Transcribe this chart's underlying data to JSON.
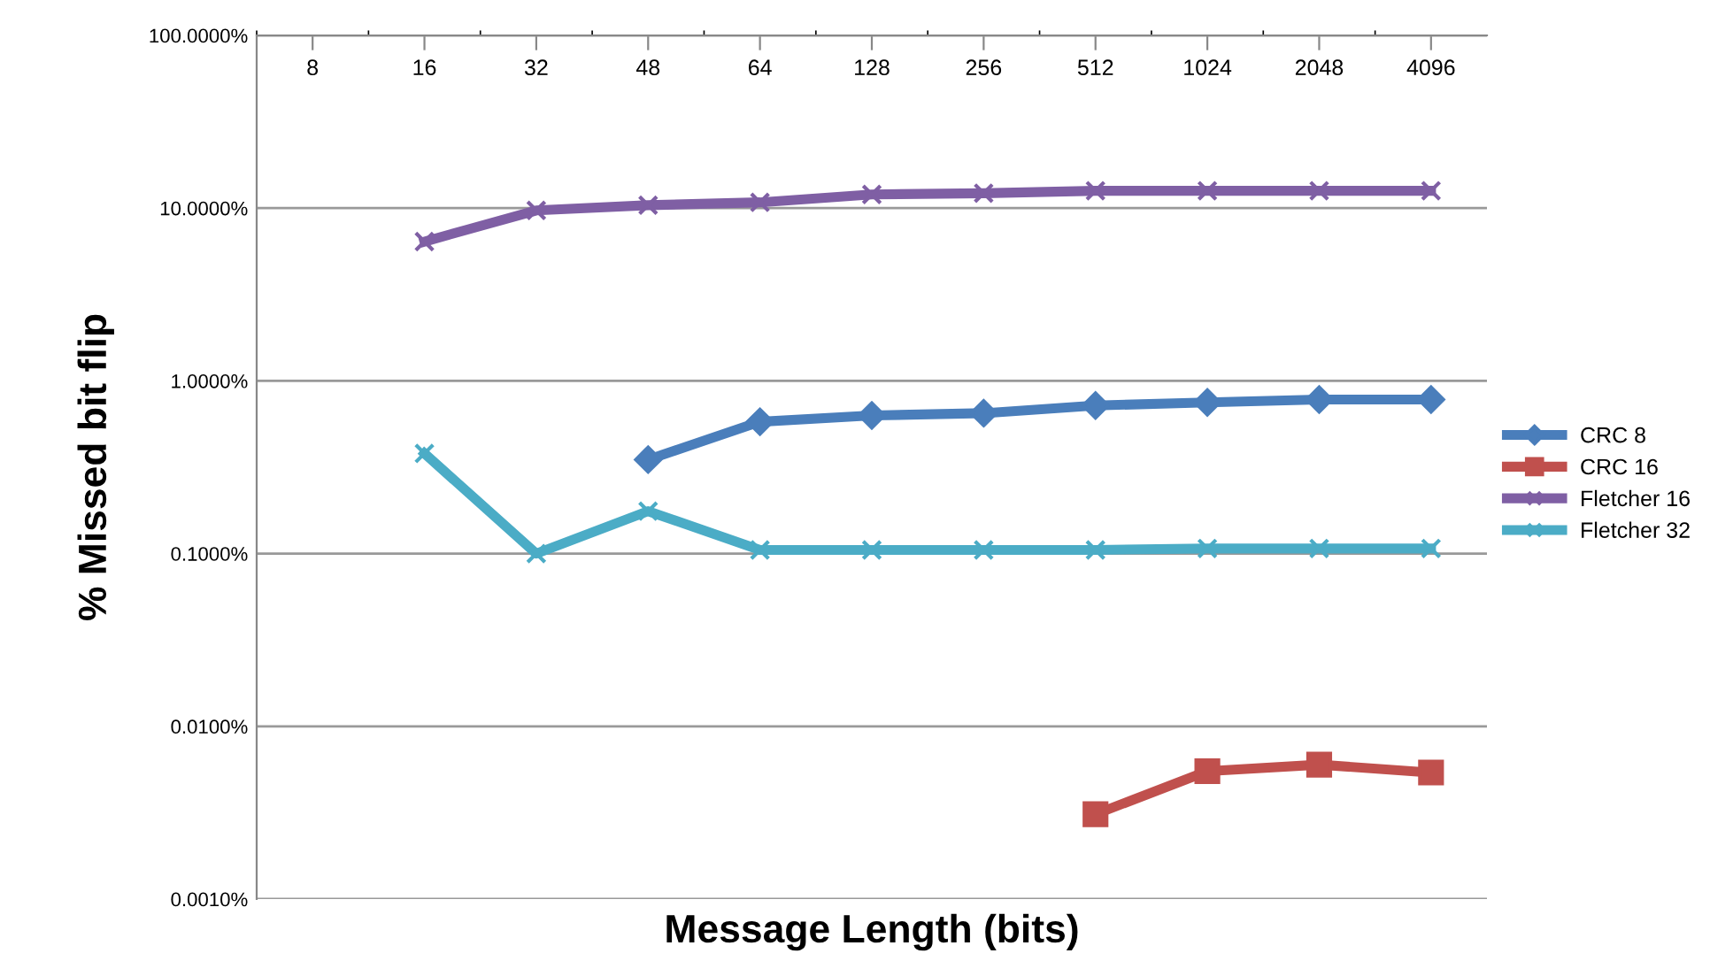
{
  "chart_data": {
    "type": "line",
    "xlabel": "Message Length (bits)",
    "ylabel": "% Missed bit flip",
    "categories": [
      "8",
      "16",
      "32",
      "48",
      "64",
      "128",
      "256",
      "512",
      "1024",
      "2048",
      "4096"
    ],
    "series": [
      {
        "name": "CRC 8",
        "color": "#4a7ebb",
        "marker": "diamond",
        "values": [
          null,
          null,
          null,
          0.35,
          0.58,
          0.63,
          0.65,
          0.72,
          0.75,
          0.78,
          0.78
        ]
      },
      {
        "name": "CRC 16",
        "color": "#c0504d",
        "marker": "square",
        "values": [
          null,
          null,
          null,
          null,
          null,
          null,
          null,
          0.0031,
          0.0055,
          0.006,
          0.0054
        ]
      },
      {
        "name": "Fletcher 16",
        "color": "#7f5fa4",
        "marker": "cross",
        "values": [
          null,
          6.4,
          9.7,
          10.4,
          10.8,
          12.0,
          12.2,
          12.6,
          12.6,
          12.6,
          12.6
        ]
      },
      {
        "name": "Fletcher 32",
        "color": "#4bacc6",
        "marker": "cross",
        "values": [
          null,
          0.38,
          0.1,
          0.176,
          0.105,
          0.105,
          0.105,
          0.105,
          0.107,
          0.107,
          0.107
        ]
      }
    ],
    "log": "y",
    "ylim": [
      0.001,
      100
    ],
    "yticks": [
      {
        "value": 0.001,
        "label": "0.0010%"
      },
      {
        "value": 0.01,
        "label": "0.0100%"
      },
      {
        "value": 0.1,
        "label": "0.1000%"
      },
      {
        "value": 1,
        "label": "1.0000%"
      },
      {
        "value": 10,
        "label": "10.0000%"
      },
      {
        "value": 100,
        "label": "100.0000%"
      }
    ],
    "grid": "y",
    "legend": "right",
    "line_style": "solid"
  }
}
